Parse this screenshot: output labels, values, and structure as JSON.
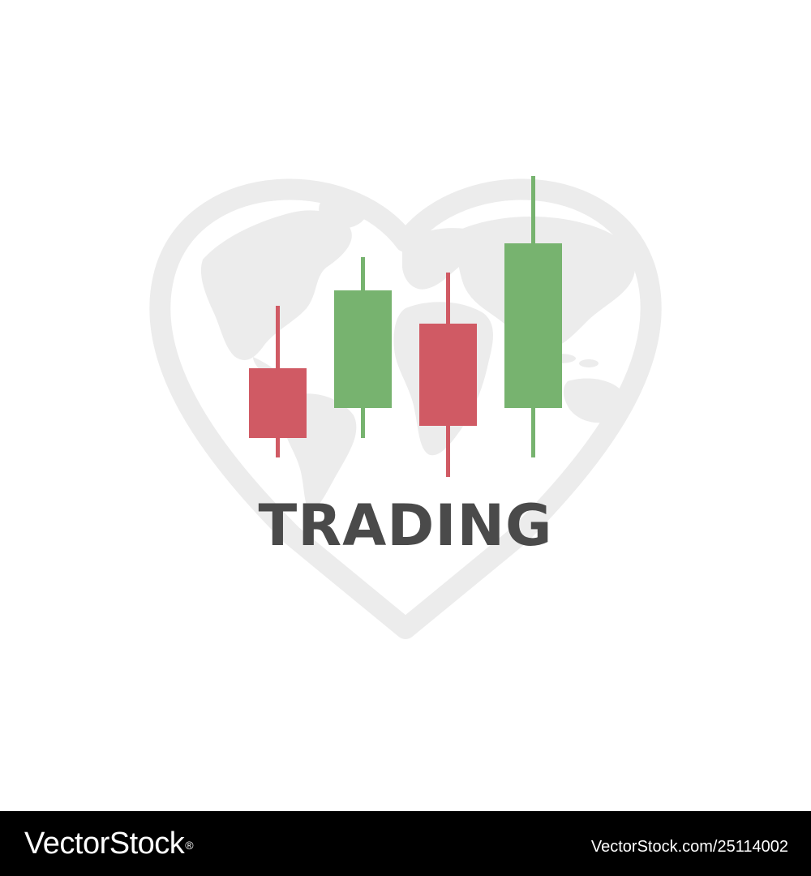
{
  "logo": {
    "word": "TRADING",
    "text_color": "#4a4a4a"
  },
  "background_icons": [
    "heart-outline-icon",
    "world-map-icon"
  ],
  "candles": [
    {
      "direction": "down",
      "color": "#d05a64"
    },
    {
      "direction": "up",
      "color": "#77b36f"
    },
    {
      "direction": "down",
      "color": "#d05a64"
    },
    {
      "direction": "up",
      "color": "#77b36f"
    }
  ],
  "colors": {
    "bearish": "#d05a64",
    "bullish": "#77b36f",
    "heart": "#ececec",
    "footer_bg": "#000000"
  },
  "footer": {
    "brand": "VectorStock",
    "brand_mark": "®",
    "image_ref": "VectorStock.com/25114002"
  }
}
